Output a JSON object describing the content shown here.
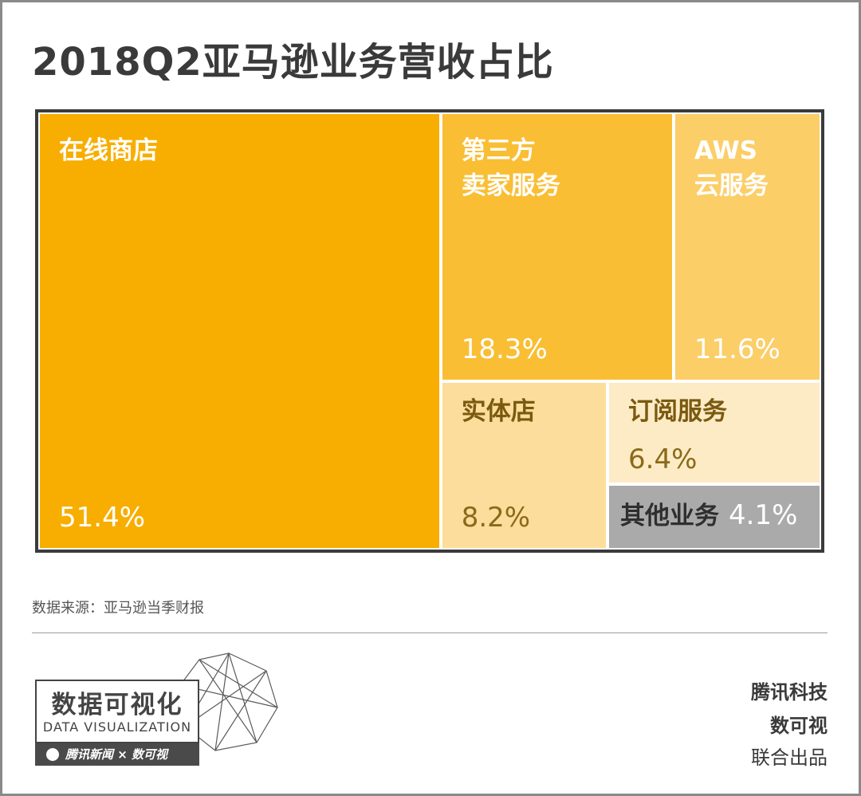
{
  "title": "2018Q2亚马逊业务营收占比",
  "chart_data": {
    "type": "treemap",
    "unit": "%",
    "items": [
      {
        "name": "在线商店",
        "value": 51.4,
        "label": "51.4%",
        "color": "#F7AE00"
      },
      {
        "name": "第三方\n卖家服务",
        "value": 18.3,
        "label": "18.3%",
        "color": "#F9BE33"
      },
      {
        "name": "AWS\n云服务",
        "value": 11.6,
        "label": "11.6%",
        "color": "#FBCE68"
      },
      {
        "name": "实体店",
        "value": 8.2,
        "label": "8.2%",
        "color": "#FCDD9B"
      },
      {
        "name": "订阅服务",
        "value": 6.4,
        "label": "6.4%",
        "color": "#FDEBC6"
      },
      {
        "name": "其他业务",
        "value": 4.1,
        "label": "4.1%",
        "color": "#AAAAAA"
      }
    ]
  },
  "source": "数据来源：亚马逊当季财报",
  "logo": {
    "title_cn": "数据可视化",
    "title_en": "DATA VISUALIZATION",
    "bar_text": "腾讯新闻 × 数可视"
  },
  "credits": {
    "line1": "腾讯科技",
    "line2": "数可视",
    "line3": "联合出品"
  }
}
